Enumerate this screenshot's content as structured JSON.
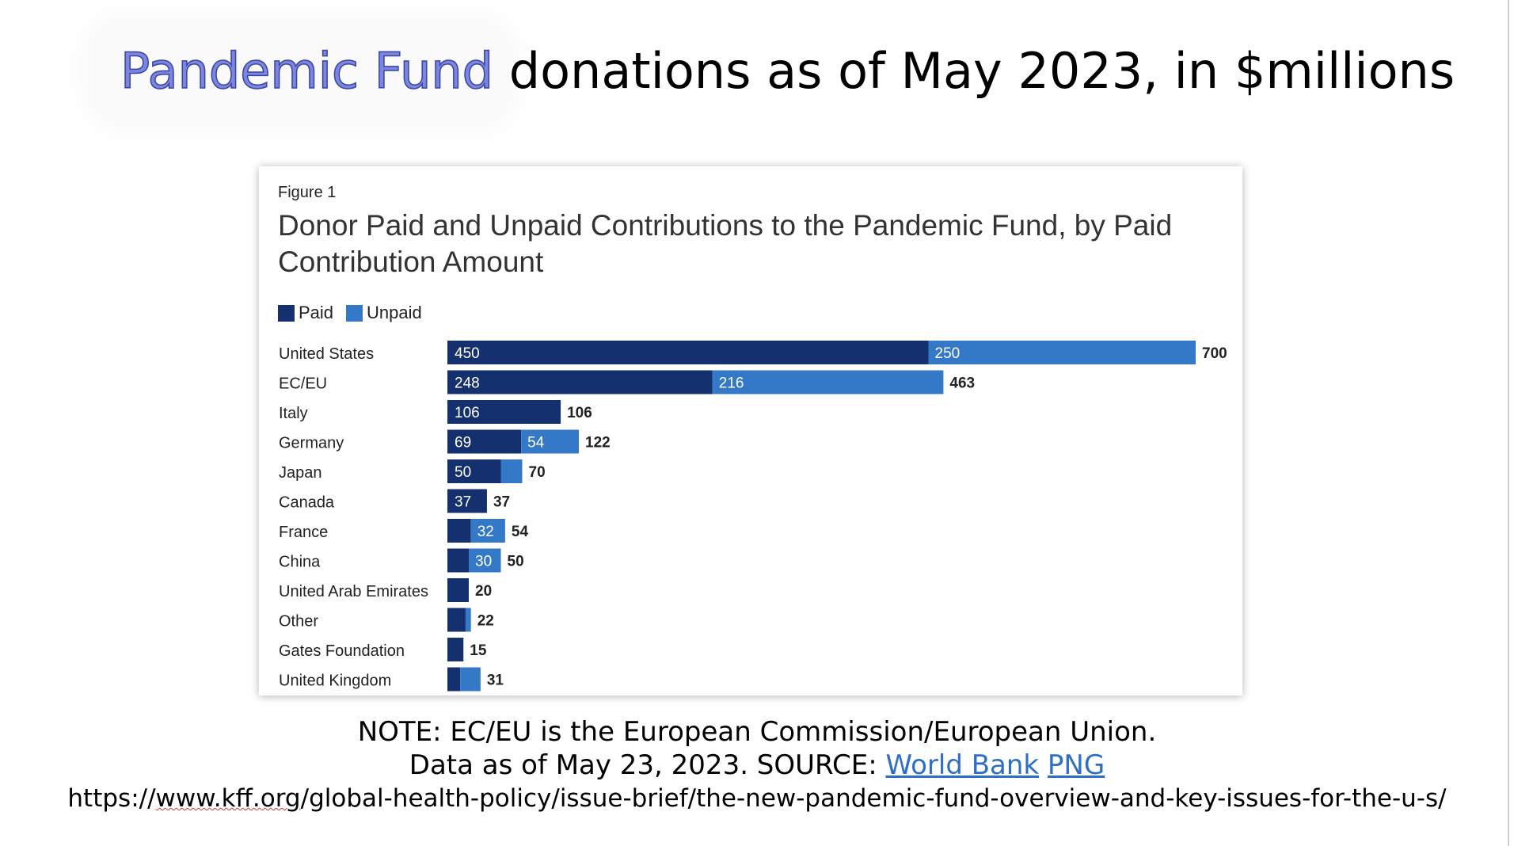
{
  "slide": {
    "title_highlight": "Pandemic Fund",
    "title_rest": " donations as of May 2023, in $millions",
    "note_line": "NOTE: EC/EU is the European Commission/European Union.",
    "data_line_prefix": "Data as of May 23, 2023. SOURCE: ",
    "link_world_bank": "World Bank",
    "link_png": "PNG",
    "url_prefix": "https://",
    "url_domain": "www.kff.org",
    "url_path": "/global-health-policy/issue-brief/the-new-pandemic-fund-overview-and-key-issues-for-the-u-s/"
  },
  "colors": {
    "paid": "#15306e",
    "unpaid": "#3478c8",
    "title_highlight": "#7b86e0",
    "link": "#2e6fc5"
  },
  "chart_data": {
    "type": "bar",
    "orientation": "horizontal",
    "stacked": true,
    "figure_label": "Figure 1",
    "title": "Donor Paid and Unpaid Contributions to the Pandemic Fund, by Paid Contribution Amount",
    "legend_position": "top-left",
    "categories": [
      "United States",
      "EC/EU",
      "Italy",
      "Germany",
      "Japan",
      "Canada",
      "France",
      "China",
      "United Arab Emirates",
      "Other",
      "Gates Foundation",
      "United Kingdom"
    ],
    "series": [
      {
        "name": "Paid",
        "values": [
          450,
          248,
          106,
          69,
          50,
          37,
          22,
          20,
          20,
          17,
          15,
          12
        ]
      },
      {
        "name": "Unpaid",
        "values": [
          250,
          216,
          0,
          54,
          20,
          0,
          32,
          30,
          0,
          5,
          0,
          19
        ]
      }
    ],
    "segment_labels": {
      "Paid": [
        "450",
        "248",
        "106",
        "69",
        "50",
        "37",
        "",
        "",
        "",
        "",
        "",
        ""
      ],
      "Unpaid": [
        "250",
        "216",
        "",
        "54",
        "",
        "",
        "32",
        "30",
        "",
        "",
        "",
        ""
      ]
    },
    "totals": [
      "700",
      "463",
      "106",
      "122",
      "70",
      "37",
      "54",
      "50",
      "20",
      "22",
      "15",
      "31"
    ],
    "xlim": [
      0,
      700
    ],
    "grid": false
  }
}
